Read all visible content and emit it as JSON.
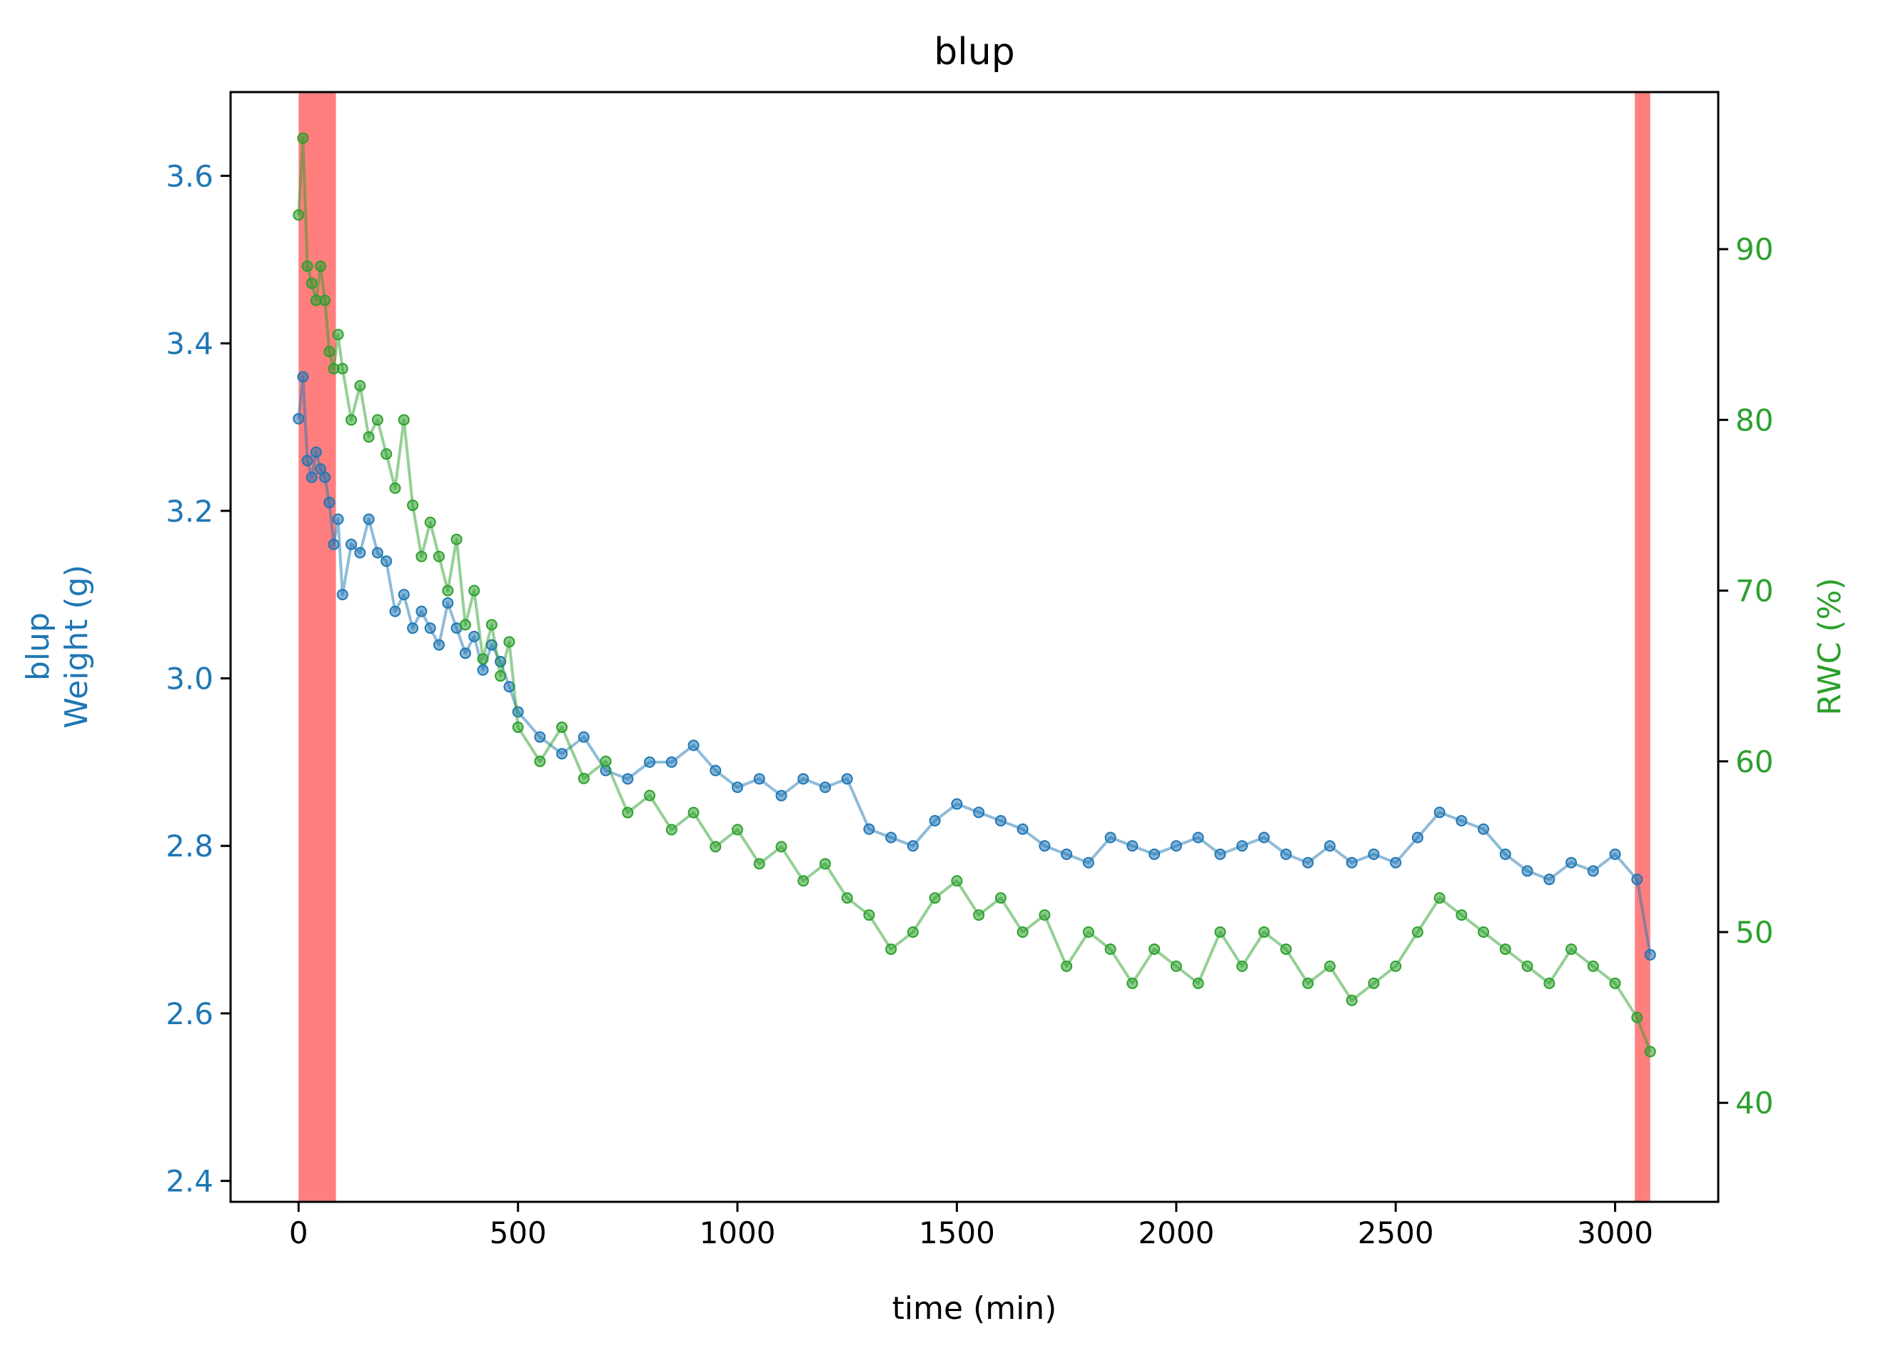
{
  "chart_data": {
    "type": "line",
    "title": "blup",
    "xlabel": "time (min)",
    "ylabel_left_line1": "blup",
    "ylabel_left_line2": "Weight (g)",
    "ylabel_right": "RWC (%)",
    "xlim": [
      -155,
      3235
    ],
    "ylim_left": [
      2.375,
      3.7
    ],
    "ylim_right": [
      34.2,
      99.2
    ],
    "x_ticks": [
      0,
      500,
      1000,
      1500,
      2000,
      2500,
      3000
    ],
    "x_tick_labels": [
      "0",
      "500",
      "1000",
      "1500",
      "2000",
      "2500",
      "3000"
    ],
    "y_left_ticks": [
      2.4,
      2.6,
      2.8,
      3.0,
      3.2,
      3.4,
      3.6
    ],
    "y_left_tick_labels": [
      "2.4",
      "2.6",
      "2.8",
      "3.0",
      "3.2",
      "3.4",
      "3.6"
    ],
    "y_right_ticks": [
      40,
      50,
      60,
      70,
      80,
      90
    ],
    "y_right_tick_labels": [
      "40",
      "50",
      "60",
      "70",
      "80",
      "90"
    ],
    "highlight_spans": [
      [
        0,
        85
      ],
      [
        3045,
        3080
      ]
    ],
    "grid": false,
    "colors": {
      "weight": "#1f77b4",
      "rwc": "#2ca02c",
      "highlight": "#ff7f7f",
      "axis": "#000000"
    },
    "series": [
      {
        "axis": "left",
        "color": "#1f77b4",
        "x": [
          0,
          10,
          20,
          30,
          40,
          50,
          60,
          70,
          80,
          90,
          100,
          120,
          140,
          160,
          180,
          200,
          220,
          240,
          260,
          280,
          300,
          320,
          340,
          360,
          380,
          400,
          420,
          440,
          460,
          480,
          500,
          550,
          600,
          650,
          700,
          750,
          800,
          850,
          900,
          950,
          1000,
          1050,
          1100,
          1150,
          1200,
          1250,
          1300,
          1350,
          1400,
          1450,
          1500,
          1550,
          1600,
          1650,
          1700,
          1750,
          1800,
          1850,
          1900,
          1950,
          2000,
          2050,
          2100,
          2150,
          2200,
          2250,
          2300,
          2350,
          2400,
          2450,
          2500,
          2550,
          2600,
          2650,
          2700,
          2750,
          2800,
          2850,
          2900,
          2950,
          3000,
          3050,
          3080
        ],
        "values": [
          3.31,
          3.36,
          3.26,
          3.24,
          3.27,
          3.25,
          3.24,
          3.21,
          3.16,
          3.19,
          3.1,
          3.16,
          3.15,
          3.19,
          3.15,
          3.14,
          3.08,
          3.1,
          3.06,
          3.08,
          3.06,
          3.04,
          3.09,
          3.06,
          3.03,
          3.05,
          3.01,
          3.04,
          3.02,
          2.99,
          2.96,
          2.93,
          2.91,
          2.93,
          2.89,
          2.88,
          2.9,
          2.9,
          2.92,
          2.89,
          2.87,
          2.88,
          2.86,
          2.88,
          2.87,
          2.88,
          2.82,
          2.81,
          2.8,
          2.83,
          2.85,
          2.84,
          2.83,
          2.82,
          2.8,
          2.79,
          2.78,
          2.81,
          2.8,
          2.79,
          2.8,
          2.81,
          2.79,
          2.8,
          2.81,
          2.79,
          2.78,
          2.8,
          2.78,
          2.79,
          2.78,
          2.81,
          2.84,
          2.83,
          2.82,
          2.79,
          2.77,
          2.76,
          2.78,
          2.77,
          2.79,
          2.76,
          2.67
        ]
      },
      {
        "axis": "right",
        "color": "#2ca02c",
        "x": [
          0,
          10,
          20,
          30,
          40,
          50,
          60,
          70,
          80,
          90,
          100,
          120,
          140,
          160,
          180,
          200,
          220,
          240,
          260,
          280,
          300,
          320,
          340,
          360,
          380,
          400,
          420,
          440,
          460,
          480,
          500,
          550,
          600,
          650,
          700,
          750,
          800,
          850,
          900,
          950,
          1000,
          1050,
          1100,
          1150,
          1200,
          1250,
          1300,
          1350,
          1400,
          1450,
          1500,
          1550,
          1600,
          1650,
          1700,
          1750,
          1800,
          1850,
          1900,
          1950,
          2000,
          2050,
          2100,
          2150,
          2200,
          2250,
          2300,
          2350,
          2400,
          2450,
          2500,
          2550,
          2600,
          2650,
          2700,
          2750,
          2800,
          2850,
          2900,
          2950,
          3000,
          3050,
          3080
        ],
        "values": [
          92.0,
          96.5,
          89.0,
          88.0,
          87.0,
          89.0,
          87.0,
          84.0,
          83.0,
          85.0,
          83.0,
          80.0,
          82.0,
          79.0,
          80.0,
          78.0,
          76.0,
          80.0,
          75.0,
          72.0,
          74.0,
          72.0,
          70.0,
          73.0,
          68.0,
          70.0,
          66.0,
          68.0,
          65.0,
          67.0,
          62.0,
          60.0,
          62.0,
          59.0,
          60.0,
          57.0,
          58.0,
          56.0,
          57.0,
          55.0,
          56.0,
          54.0,
          55.0,
          53.0,
          54.0,
          52.0,
          51.0,
          49.0,
          50.0,
          52.0,
          53.0,
          51.0,
          52.0,
          50.0,
          51.0,
          48.0,
          50.0,
          49.0,
          47.0,
          49.0,
          48.0,
          47.0,
          50.0,
          48.0,
          50.0,
          49.0,
          47.0,
          48.0,
          46.0,
          47.0,
          48.0,
          50.0,
          52.0,
          51.0,
          50.0,
          49.0,
          48.0,
          47.0,
          49.0,
          48.0,
          47.0,
          45.0,
          43.0
        ]
      }
    ]
  }
}
